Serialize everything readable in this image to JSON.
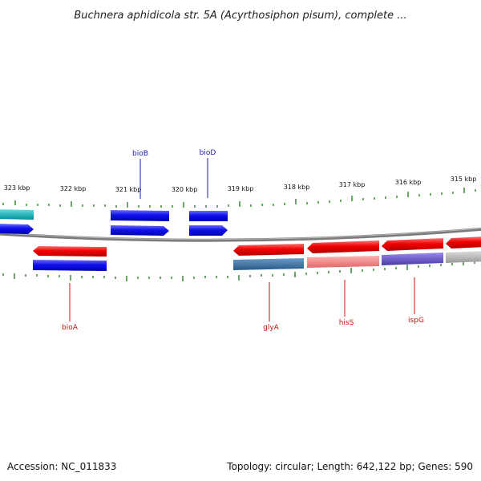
{
  "title": "Buchnera aphidicola str. 5A (Acyrthosiphon pisum), complete ...",
  "footer": {
    "accession": "Accession: NC_011833",
    "summary": "Topology: circular; Length: 642,122 bp; Genes: 590"
  },
  "colors": {
    "backbone": "#808080",
    "tick": "#1a7a1a",
    "forward_label": "#1a1aaa",
    "reverse_label": "#cc1111"
  },
  "ticks": [
    "323 kbp",
    "322 kbp",
    "321 kbp",
    "320 kbp",
    "319 kbp",
    "318 kbp",
    "317 kbp",
    "316 kbp",
    "315 kbp"
  ],
  "genes": [
    {
      "label": "bioB",
      "color": "#1a1aaa"
    },
    {
      "label": "bioD",
      "color": "#1a1aaa"
    },
    {
      "label": "bioA",
      "color": "#cc1111"
    },
    {
      "label": "glyA",
      "color": "#cc1111"
    },
    {
      "label": "hisS",
      "color": "#cc1111"
    },
    {
      "label": "ispG",
      "color": "#cc1111"
    }
  ]
}
